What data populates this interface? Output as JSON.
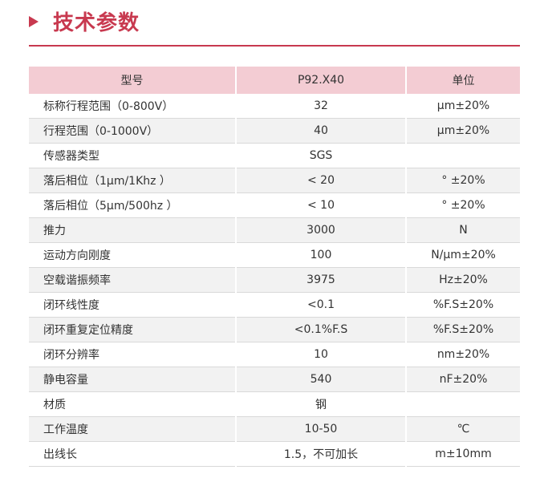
{
  "section": {
    "title": "技术参数"
  },
  "table": {
    "headers": [
      "型号",
      "P92.X40",
      "单位"
    ],
    "rows": [
      {
        "param": "标称行程范围（0-800V）",
        "value": "32",
        "unit": "μm±20%"
      },
      {
        "param": "行程范围（0-1000V）",
        "value": "40",
        "unit": "μm±20%"
      },
      {
        "param": "传感器类型",
        "value": "SGS",
        "unit": ""
      },
      {
        "param": "落后相位（1μm/1Khz ）",
        "value": "< 20",
        "unit": "° ±20%"
      },
      {
        "param": "落后相位（5μm/500hz ）",
        "value": "< 10",
        "unit": "° ±20%"
      },
      {
        "param": "推力",
        "value": "3000",
        "unit": "N"
      },
      {
        "param": "运动方向刚度",
        "value": "100",
        "unit": "N/μm±20%"
      },
      {
        "param": "空载谐振频率",
        "value": "3975",
        "unit": "Hz±20%"
      },
      {
        "param": "闭环线性度",
        "value": "<0.1",
        "unit": "%F.S±20%"
      },
      {
        "param": "闭环重复定位精度",
        "value": "<0.1%F.S",
        "unit": "%F.S±20%"
      },
      {
        "param": "闭环分辨率",
        "value": "10",
        "unit": "nm±20%"
      },
      {
        "param": "静电容量",
        "value": "540",
        "unit": "nF±20%"
      },
      {
        "param": "材质",
        "value": "钢",
        "unit": ""
      },
      {
        "param": "工作温度",
        "value": "10-50",
        "unit": "℃"
      },
      {
        "param": "出线长",
        "value": "1.5，不可加长",
        "unit": "m±10mm"
      }
    ]
  },
  "colors": {
    "accent": "#c8394f",
    "header_bg": "#f3ccd3",
    "alt_row_bg": "#f2f2f2"
  }
}
